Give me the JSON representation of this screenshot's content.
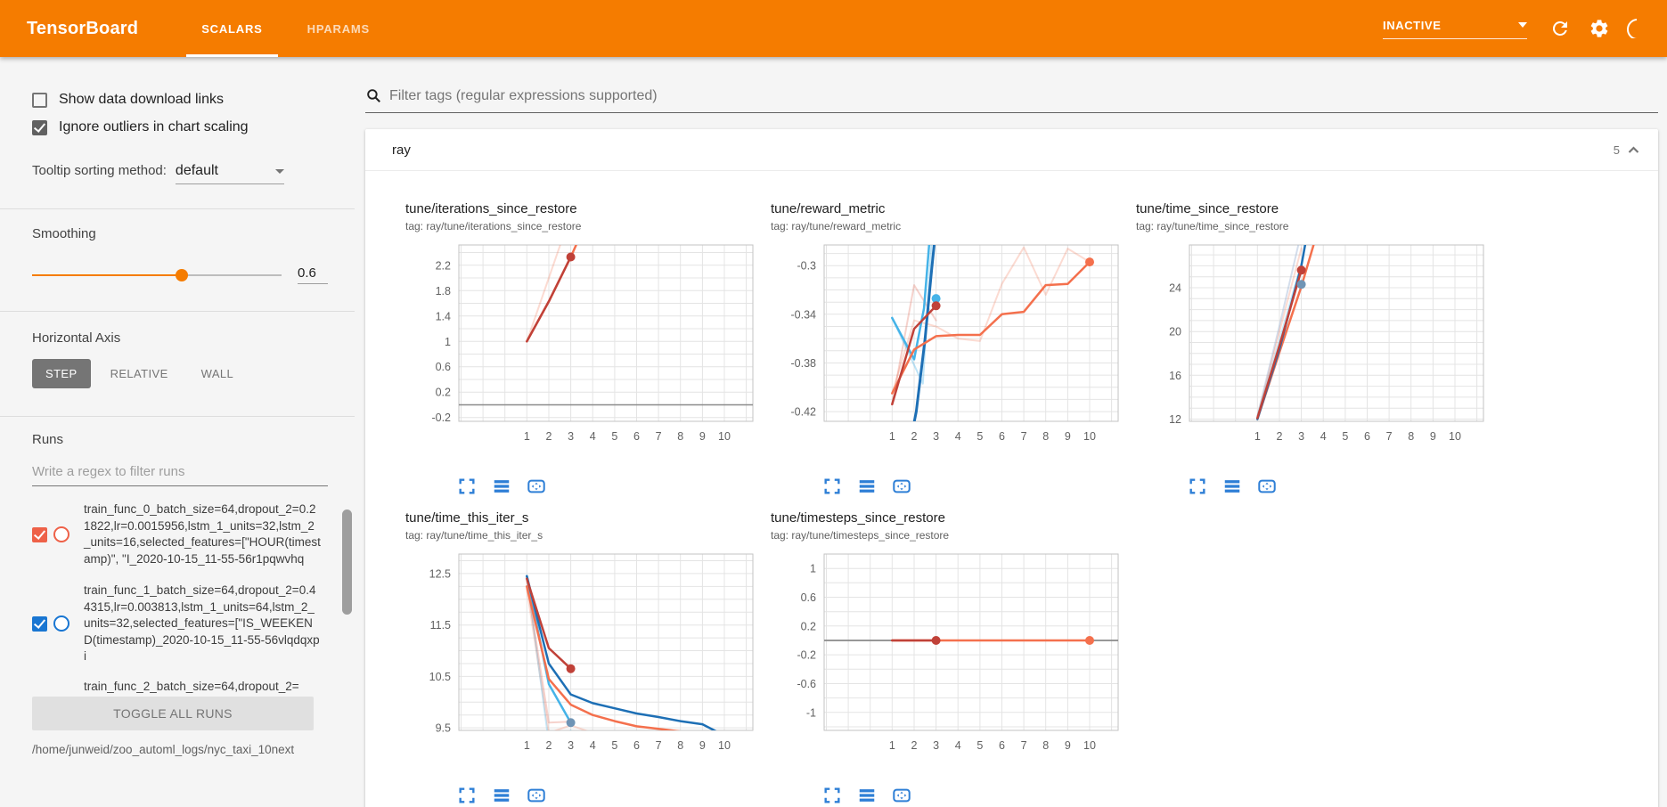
{
  "topbar": {
    "title": "TensorBoard",
    "tabs": [
      {
        "label": "SCALARS",
        "active": true
      },
      {
        "label": "HPARAMS",
        "active": false
      }
    ],
    "status": "INACTIVE",
    "colors": {
      "bar": "#f57c00"
    }
  },
  "sidebar": {
    "show_download": {
      "label": "Show data download links",
      "checked": false
    },
    "ignore_outliers": {
      "label": "Ignore outliers in chart scaling",
      "checked": true
    },
    "tooltip_sorting": {
      "label": "Tooltip sorting method:",
      "value": "default"
    },
    "smoothing": {
      "label": "Smoothing",
      "value": "0.6",
      "percent": 60
    },
    "horizontal_axis": {
      "label": "Horizontal Axis",
      "options": [
        "STEP",
        "RELATIVE",
        "WALL"
      ],
      "selected": "STEP"
    },
    "runs": {
      "label": "Runs",
      "filter_placeholder": "Write a regex to filter runs",
      "items": [
        {
          "name": "train_func_0_batch_size=64,dropout_2=0.21822,lr=0.0015956,lstm_1_units=32,lstm_2_units=16,selected_features=[\"HOUR(timestamp)\", \"I_2020-10-15_11-55-56r1pqwvhq",
          "color": "#ee6148",
          "checked": true
        },
        {
          "name": "train_func_1_batch_size=64,dropout_2=0.44315,lr=0.003813,lstm_1_units=64,lstm_2_units=32,selected_features=[\"IS_WEEKEND(timestamp)_2020-10-15_11-55-56vlqdqxpi",
          "color": "#1976d2",
          "checked": true
        }
      ],
      "partial_item": "train_func_2_batch_size=64,dropout_2=",
      "toggle_label": "TOGGLE ALL RUNS",
      "log_dir": "/home/junweid/zoo_automl_logs/nyc_taxi_10next"
    }
  },
  "main": {
    "filter_placeholder": "Filter tags (regular expressions supported)",
    "group": {
      "name": "ray",
      "count": "5"
    }
  },
  "chart_data": [
    {
      "type": "line",
      "title": "tune/iterations_since_restore",
      "tag": "tag: ray/tune/iterations_since_restore",
      "xlim": [
        -2.1,
        11.3
      ],
      "ylim": [
        -0.26,
        2.52
      ],
      "xticks": [
        1,
        2,
        3,
        4,
        5,
        6,
        7,
        8,
        9,
        10
      ],
      "yticks": [
        2.2,
        1.8,
        1.4,
        1,
        0.6,
        0.2,
        -0.2
      ],
      "minor_step": 0.2,
      "series": [
        {
          "name": "train_func_1 raw",
          "color": "#f4704d",
          "opacity": 0.25,
          "width": 2,
          "points": [
            [
              1,
              1
            ],
            [
              2,
              2
            ],
            [
              3,
              3
            ]
          ]
        },
        {
          "name": "constant zero run",
          "color": "#8a8a8a",
          "opacity": 1,
          "width": 1.6,
          "points": [
            [
              -2.1,
              0
            ],
            [
              11.3,
              0
            ]
          ]
        },
        {
          "name": "train_func_1 smoothed",
          "color": "#f4704d",
          "opacity": 1,
          "width": 2.5,
          "points": [
            [
              1,
              1
            ],
            [
              2,
              1.63
            ],
            [
              3,
              2.33
            ],
            [
              4,
              3.1
            ]
          ]
        },
        {
          "name": "train_func_0 smoothed",
          "color": "#c04138",
          "opacity": 1,
          "width": 2.5,
          "points": [
            [
              1,
              1
            ],
            [
              2,
              1.63
            ],
            [
              3,
              2.33
            ]
          ]
        }
      ],
      "dots": [
        {
          "x": 3,
          "y": 2.33,
          "color": "#c04138"
        }
      ]
    },
    {
      "type": "line",
      "title": "tune/reward_metric",
      "tag": "tag: ray/tune/reward_metric",
      "xlim": [
        -2.1,
        11.3
      ],
      "ylim": [
        -0.428,
        -0.283
      ],
      "xticks": [
        1,
        2,
        3,
        4,
        5,
        6,
        7,
        8,
        9,
        10
      ],
      "yticks": [
        -0.3,
        -0.34,
        -0.38,
        -0.42
      ],
      "minor_step": 0.01,
      "series": [
        {
          "name": "train_func_1 raw",
          "color": "#f4704d",
          "opacity": 0.25,
          "width": 2,
          "points": [
            [
              1,
              -0.405
            ],
            [
              2,
              -0.345
            ],
            [
              3,
              -0.35
            ],
            [
              4,
              -0.36
            ],
            [
              5,
              -0.362
            ],
            [
              6,
              -0.315
            ],
            [
              7,
              -0.285
            ],
            [
              8,
              -0.324
            ],
            [
              9,
              -0.286
            ],
            [
              10,
              -0.297
            ]
          ]
        },
        {
          "name": "train_func_0 raw",
          "color": "#e05c48",
          "opacity": 0.28,
          "width": 2,
          "points": [
            [
              1,
              -0.414
            ],
            [
              2,
              -0.316
            ],
            [
              3,
              -0.345
            ]
          ]
        },
        {
          "name": "cyan run raw",
          "color": "#45b3e8",
          "opacity": 0.35,
          "width": 2,
          "points": [
            [
              1,
              -0.343
            ],
            [
              2.4,
              -0.397
            ],
            [
              2.9,
              -0.25
            ]
          ]
        },
        {
          "name": "cyan run smoothed",
          "color": "#45b3e8",
          "opacity": 1,
          "width": 2.5,
          "points": [
            [
              1,
              -0.343
            ],
            [
              2,
              -0.377
            ],
            [
              2.45,
              -0.335
            ],
            [
              2.9,
              -0.235
            ]
          ]
        },
        {
          "name": "blue run smoothed",
          "color": "#1d6fb5",
          "opacity": 1,
          "width": 3,
          "points": [
            [
              1.55,
              -0.47
            ],
            [
              2.1,
              -0.42
            ],
            [
              2.5,
              -0.36
            ],
            [
              2.8,
              -0.303
            ],
            [
              3.1,
              -0.25
            ]
          ]
        },
        {
          "name": "train_func_1 smoothed",
          "color": "#f4704d",
          "opacity": 1,
          "width": 2.5,
          "points": [
            [
              1,
              -0.405
            ],
            [
              2,
              -0.369
            ],
            [
              3,
              -0.358
            ],
            [
              4,
              -0.357
            ],
            [
              5,
              -0.357
            ],
            [
              6,
              -0.34
            ],
            [
              7,
              -0.338
            ],
            [
              8,
              -0.316
            ],
            [
              9,
              -0.315
            ],
            [
              10,
              -0.297
            ]
          ]
        },
        {
          "name": "train_func_0 smoothed",
          "color": "#c04138",
          "opacity": 1,
          "width": 2.5,
          "points": [
            [
              1,
              -0.414
            ],
            [
              2,
              -0.352
            ],
            [
              3,
              -0.333
            ]
          ]
        }
      ],
      "dots": [
        {
          "x": 3,
          "y": -0.327,
          "color": "#45b3e8"
        },
        {
          "x": 3,
          "y": -0.333,
          "color": "#c04138"
        },
        {
          "x": 10,
          "y": -0.297,
          "color": "#f4704d"
        }
      ]
    },
    {
      "type": "line",
      "title": "tune/time_since_restore",
      "tag": "tag: ray/tune/time_since_restore",
      "xlim": [
        -2.1,
        11.3
      ],
      "ylim": [
        11.8,
        27.9
      ],
      "xticks": [
        1,
        2,
        3,
        4,
        5,
        6,
        7,
        8,
        9,
        10
      ],
      "yticks": [
        24,
        20,
        16,
        12
      ],
      "minor_step": 1,
      "series": [
        {
          "name": "lavender raw",
          "color": "#9fb6d4",
          "opacity": 0.45,
          "width": 2,
          "points": [
            [
              1,
              12.3
            ],
            [
              2,
              20.5
            ],
            [
              2.9,
              28.2
            ]
          ]
        },
        {
          "name": "pink raw",
          "color": "#f4704d",
          "opacity": 0.25,
          "width": 2,
          "points": [
            [
              1,
              12.1
            ],
            [
              2,
              20
            ],
            [
              3,
              27.6
            ]
          ]
        },
        {
          "name": "cyan raw",
          "color": "#45b3e8",
          "opacity": 0.3,
          "width": 2,
          "points": [
            [
              1,
              12.2
            ],
            [
              2,
              19.2
            ],
            [
              3,
              26.2
            ]
          ]
        },
        {
          "name": "train_func_1 smoothed",
          "color": "#f4704d",
          "opacity": 1,
          "width": 2.5,
          "points": [
            [
              1,
              12
            ],
            [
              2,
              18.1
            ],
            [
              3,
              24.1
            ],
            [
              3.6,
              28.2
            ]
          ]
        },
        {
          "name": "blue run smoothed",
          "color": "#1d6fb5",
          "opacity": 1,
          "width": 2.5,
          "points": [
            [
              1,
              12
            ],
            [
              2,
              18.4
            ],
            [
              3,
              26
            ],
            [
              3.2,
              28.2
            ]
          ]
        },
        {
          "name": "train_func_0 smoothed",
          "color": "#c04138",
          "opacity": 1,
          "width": 2.5,
          "points": [
            [
              1,
              12.1
            ],
            [
              2,
              18.7
            ],
            [
              3,
              25.6
            ]
          ]
        }
      ],
      "dots": [
        {
          "x": 3,
          "y": 25.6,
          "color": "#c04138"
        },
        {
          "x": 3,
          "y": 24.3,
          "color": "#6f94b5"
        }
      ]
    },
    {
      "type": "line",
      "title": "tune/time_this_iter_s",
      "tag": "tag: ray/tune/time_this_iter_s",
      "xlim": [
        -2.1,
        11.3
      ],
      "ylim": [
        9.45,
        12.88
      ],
      "xticks": [
        1,
        2,
        3,
        4,
        5,
        6,
        7,
        8,
        9,
        10
      ],
      "yticks": [
        12.5,
        11.5,
        10.5,
        9.5
      ],
      "minor_step": 0.25,
      "series": [
        {
          "name": "train_func_1 raw",
          "color": "#f4704d",
          "opacity": 0.25,
          "width": 2,
          "points": [
            [
              1,
              12.2
            ],
            [
              2,
              9.4
            ],
            [
              3,
              9.55
            ],
            [
              4,
              9.4
            ],
            [
              5,
              9.42
            ],
            [
              6,
              9.36
            ],
            [
              7,
              9.37
            ],
            [
              8,
              9.35
            ],
            [
              9,
              9.31
            ],
            [
              10,
              9.28
            ]
          ]
        },
        {
          "name": "cyan raw",
          "color": "#45b3e8",
          "opacity": 0.3,
          "width": 2,
          "points": [
            [
              1,
              12.45
            ],
            [
              2,
              9.2
            ],
            [
              3,
              9.45
            ]
          ]
        },
        {
          "name": "train_func_0 raw",
          "color": "#e05c48",
          "opacity": 0.28,
          "width": 2,
          "points": [
            [
              1,
              12.35
            ],
            [
              2,
              9.6
            ],
            [
              3,
              9.62
            ]
          ]
        },
        {
          "name": "cyan smoothed",
          "color": "#45b3e8",
          "opacity": 1,
          "width": 2.5,
          "points": [
            [
              1,
              12.45
            ],
            [
              2,
              10.35
            ],
            [
              3,
              9.6
            ]
          ]
        },
        {
          "name": "train_func_1 smoothed",
          "color": "#f4704d",
          "opacity": 1,
          "width": 2.5,
          "points": [
            [
              1,
              12.25
            ],
            [
              2,
              10.45
            ],
            [
              3,
              9.95
            ],
            [
              4,
              9.75
            ],
            [
              5,
              9.63
            ],
            [
              6,
              9.53
            ],
            [
              7,
              9.48
            ],
            [
              8,
              9.43
            ],
            [
              9,
              9.37
            ],
            [
              10,
              9.3
            ]
          ]
        },
        {
          "name": "blue smoothed",
          "color": "#1d6fb5",
          "opacity": 1,
          "width": 2.5,
          "points": [
            [
              1,
              12.45
            ],
            [
              2,
              10.75
            ],
            [
              3,
              10.15
            ],
            [
              4,
              9.98
            ],
            [
              5,
              9.88
            ],
            [
              6,
              9.78
            ],
            [
              7,
              9.71
            ],
            [
              8,
              9.63
            ],
            [
              9,
              9.57
            ],
            [
              10,
              9.35
            ]
          ]
        },
        {
          "name": "train_func_0 smoothed",
          "color": "#c04138",
          "opacity": 1,
          "width": 2.5,
          "points": [
            [
              1,
              12.4
            ],
            [
              2,
              11.05
            ],
            [
              3,
              10.65
            ]
          ]
        }
      ],
      "dots": [
        {
          "x": 3,
          "y": 10.65,
          "color": "#c04138"
        },
        {
          "x": 3,
          "y": 9.6,
          "color": "#6f94b5"
        },
        {
          "x": 10,
          "y": 9.3,
          "color": "#f4704d"
        }
      ]
    },
    {
      "type": "line",
      "title": "tune/timesteps_since_restore",
      "tag": "tag: ray/tune/timesteps_since_restore",
      "xlim": [
        -2.1,
        11.3
      ],
      "ylim": [
        -1.25,
        1.2
      ],
      "xticks": [
        1,
        2,
        3,
        4,
        5,
        6,
        7,
        8,
        9,
        10
      ],
      "yticks": [
        1,
        0.6,
        0.2,
        -0.2,
        -0.6,
        -1
      ],
      "minor_step": 0.2,
      "series": [
        {
          "name": "constant zero gray",
          "color": "#8a8a8a",
          "opacity": 1,
          "width": 1.8,
          "points": [
            [
              -2.1,
              0
            ],
            [
              11.3,
              0
            ]
          ]
        },
        {
          "name": "train_func_1 smoothed",
          "color": "#f4704d",
          "opacity": 1,
          "width": 2.5,
          "points": [
            [
              1,
              0
            ],
            [
              10,
              0
            ]
          ]
        },
        {
          "name": "train_func_0 smoothed",
          "color": "#c04138",
          "opacity": 1,
          "width": 2.5,
          "points": [
            [
              1,
              0
            ],
            [
              3,
              0
            ]
          ]
        }
      ],
      "dots": [
        {
          "x": 3,
          "y": 0,
          "color": "#c04138"
        },
        {
          "x": 10,
          "y": 0,
          "color": "#f4704d"
        }
      ]
    }
  ]
}
